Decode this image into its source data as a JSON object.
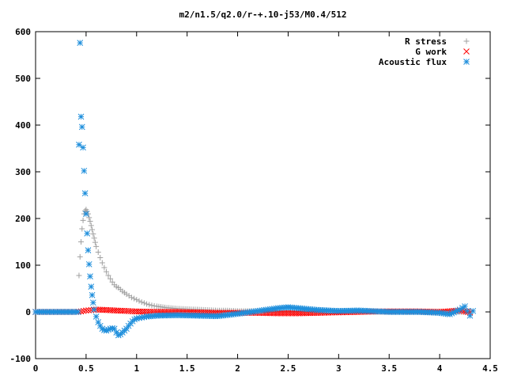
{
  "chart_data": {
    "type": "scatter",
    "title": "m2/n1.5/q2.0/r-+.10-j53/M0.4/512",
    "xlabel": "",
    "ylabel": "",
    "xlim": [
      0,
      4.5
    ],
    "ylim": [
      -100,
      600
    ],
    "x_ticks": [
      "0",
      "0.5",
      "1",
      "1.5",
      "2",
      "2.5",
      "3",
      "3.5",
      "4",
      "4.5"
    ],
    "y_ticks": [
      "-100",
      "0",
      "100",
      "200",
      "300",
      "400",
      "500",
      "600"
    ],
    "grid": false,
    "legend_position": "top-right",
    "series": [
      {
        "name": "R stress",
        "marker": "+",
        "color": "#a0a0a0",
        "x": [
          0.0,
          0.1,
          0.2,
          0.3,
          0.4,
          0.43,
          0.44,
          0.45,
          0.46,
          0.47,
          0.48,
          0.49,
          0.5,
          0.51,
          0.52,
          0.53,
          0.54,
          0.55,
          0.56,
          0.57,
          0.58,
          0.59,
          0.6,
          0.62,
          0.64,
          0.66,
          0.68,
          0.7,
          0.72,
          0.74,
          0.76,
          0.78,
          0.8,
          0.82,
          0.84,
          0.86,
          0.88,
          0.9,
          0.95,
          1.0,
          1.05,
          1.1,
          1.15,
          1.2,
          1.3,
          1.4,
          1.5,
          1.6,
          1.7,
          1.8,
          1.9,
          2.0,
          2.2,
          2.4,
          2.6,
          2.8,
          3.0,
          3.5,
          4.0,
          4.3
        ],
        "y": [
          0,
          0,
          0,
          0,
          0,
          78,
          118,
          150,
          178,
          196,
          210,
          216,
          219,
          215,
          210,
          202,
          194,
          185,
          176,
          167,
          158,
          149,
          140,
          128,
          116,
          105,
          95,
          86,
          78,
          71,
          64,
          58,
          54,
          52,
          48,
          44,
          41,
          38,
          31,
          26,
          21,
          17,
          14,
          12,
          9,
          7,
          6,
          5,
          4,
          3,
          3,
          2,
          2,
          2,
          1,
          1,
          1,
          0,
          0,
          0
        ]
      },
      {
        "name": "G work",
        "marker": "x",
        "color": "#ff0000",
        "x": [
          0.0,
          0.2,
          0.4,
          0.45,
          0.5,
          0.55,
          0.6,
          0.7,
          0.8,
          0.9,
          1.0,
          1.2,
          1.4,
          1.6,
          1.8,
          2.0,
          2.2,
          2.4,
          2.6,
          2.8,
          3.0,
          3.2,
          3.4,
          3.6,
          3.8,
          4.0,
          4.2,
          4.3
        ],
        "y": [
          0,
          0,
          0,
          1,
          3,
          4,
          5,
          4,
          3,
          2,
          1,
          0,
          0,
          -1,
          -2,
          -2,
          -2,
          -3,
          -3,
          -2,
          -1,
          0,
          1,
          1,
          1,
          0,
          3,
          -1
        ]
      },
      {
        "name": "Acoustic flux",
        "marker": "*",
        "color": "#1f8fdc",
        "x": [
          0.0,
          0.1,
          0.2,
          0.3,
          0.4,
          0.42,
          0.43,
          0.44,
          0.45,
          0.46,
          0.47,
          0.48,
          0.49,
          0.5,
          0.51,
          0.52,
          0.53,
          0.54,
          0.55,
          0.56,
          0.57,
          0.58,
          0.6,
          0.62,
          0.64,
          0.66,
          0.68,
          0.7,
          0.72,
          0.74,
          0.76,
          0.78,
          0.8,
          0.82,
          0.84,
          0.86,
          0.88,
          0.9,
          0.92,
          0.94,
          0.96,
          0.98,
          1.0,
          1.05,
          1.1,
          1.2,
          1.4,
          1.6,
          1.8,
          2.0,
          2.2,
          2.4,
          2.5,
          2.6,
          2.8,
          3.0,
          3.2,
          3.5,
          3.8,
          4.0,
          4.1,
          4.2,
          4.25,
          4.3,
          4.33
        ],
        "y": [
          0,
          0,
          0,
          0,
          0,
          0,
          358,
          576,
          418,
          396,
          352,
          302,
          254,
          210,
          168,
          132,
          102,
          76,
          54,
          36,
          20,
          5,
          -10,
          -22,
          -30,
          -36,
          -39,
          -40,
          -38,
          -36,
          -35,
          -36,
          -44,
          -50,
          -48,
          -44,
          -40,
          -36,
          -30,
          -25,
          -20,
          -16,
          -14,
          -12,
          -10,
          -8,
          -7,
          -8,
          -9,
          -4,
          2,
          8,
          10,
          8,
          4,
          2,
          3,
          0,
          0,
          -2,
          -5,
          5,
          12,
          -8,
          2
        ]
      }
    ]
  }
}
